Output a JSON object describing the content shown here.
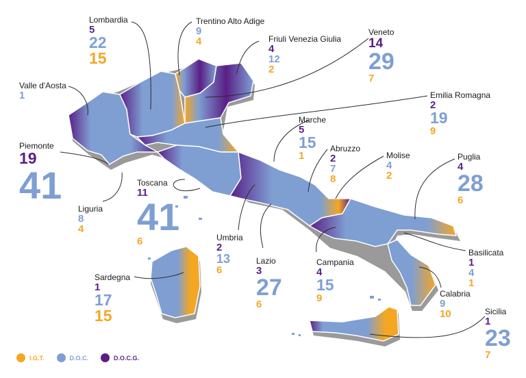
{
  "colors": {
    "igt": "#f5a623",
    "doc": "#7f9fd3",
    "docg": "#5a1f86"
  },
  "legend": [
    {
      "label": "I.G.T.",
      "color": "#f5a623"
    },
    {
      "label": "D.O.C.",
      "color": "#7f9fd3"
    },
    {
      "label": "D.O.C.G.",
      "color": "#5a1f86"
    }
  ],
  "regions": {
    "lombardia": {
      "name": "Lombardia",
      "docg": "5",
      "doc": "22",
      "igt": "15"
    },
    "trentino": {
      "name": "Trentino Alto Adige",
      "doc": "9",
      "igt": "4"
    },
    "friuli": {
      "name": "Friuli Venezia Giulia",
      "docg": "4",
      "doc": "12",
      "igt": "2"
    },
    "veneto": {
      "name": "Veneto",
      "docg": "14",
      "doc": "29",
      "igt": "7"
    },
    "valle": {
      "name": "Valle d'Aosta",
      "doc": "1"
    },
    "emilia": {
      "name": "Emilia Romagna",
      "docg": "2",
      "doc": "19",
      "igt": "9"
    },
    "marche": {
      "name": "Marche",
      "docg": "5",
      "doc": "15",
      "igt": "1"
    },
    "piemonte": {
      "name": "Piemonte",
      "docg": "19",
      "doc": "41"
    },
    "abruzzo": {
      "name": "Abruzzo",
      "docg": "2",
      "doc": "7",
      "igt": "8"
    },
    "molise": {
      "name": "Molise",
      "doc": "4",
      "igt": "2"
    },
    "puglia": {
      "name": "Puglia",
      "docg": "4",
      "doc": "28",
      "igt": "6"
    },
    "toscana": {
      "name": "Toscana",
      "docg": "11",
      "doc": "41",
      "igt": "6"
    },
    "liguria": {
      "name": "Liguria",
      "doc": "8",
      "igt": "4"
    },
    "umbria": {
      "name": "Umbria",
      "docg": "2",
      "doc": "13",
      "igt": "6"
    },
    "lazio": {
      "name": "Lazio",
      "docg": "3",
      "doc": "27",
      "igt": "6"
    },
    "campania": {
      "name": "Campania",
      "docg": "4",
      "doc": "15",
      "igt": "9"
    },
    "basilicata": {
      "name": "Basilicata",
      "docg": "1",
      "doc": "4",
      "igt": "1"
    },
    "sardegna": {
      "name": "Sardegna",
      "docg": "1",
      "doc": "17",
      "igt": "15"
    },
    "calabria": {
      "name": "Calabria",
      "doc": "9",
      "igt": "10"
    },
    "sicilia": {
      "name": "Sicilia",
      "docg": "1",
      "doc": "23",
      "igt": "7"
    }
  }
}
